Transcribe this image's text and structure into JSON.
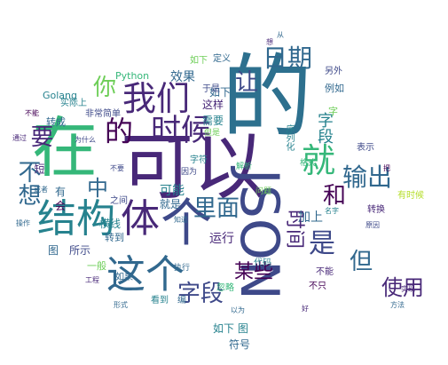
{
  "colors": {
    "c1": "#440154",
    "c2": "#482878",
    "c3": "#3e4989",
    "c4": "#31688e",
    "c5": "#26828e",
    "c6": "#1f9e89",
    "c7": "#35b779",
    "c8": "#6ece58",
    "c9": "#b5de2b",
    "c10": "#fde725"
  },
  "words": {
    "de": "的",
    "zai": "在",
    "keyi": "可以",
    "json": "JSON",
    "jiegou": "结构",
    "ti": "体",
    "zhege": "这个",
    "women": "我们",
    "shihou": "时候",
    "jiu": "就",
    "riqi": "日期",
    "rang": "让",
    "ni": "你",
    "buxiang": "不想",
    "yao": "要",
    "zhong": "中",
    "limian": "里面",
    "ziduan": "字段",
    "ziduan2": "字段",
    "shuchu": "输出",
    "he": "和",
    "shijian": "时间",
    "shi": "是",
    "dan": "但",
    "shiyong": "使用",
    "mouxie": "某些",
    "xiaoguo": "效果",
    "python": "Python",
    "golang": "Golang",
    "zhuancheng": "转成",
    "feichang": "非常简单",
    "zheyang": "这样",
    "xuyao": "需要",
    "yunxing": "运行",
    "keneng": "可能",
    "hengxian": "横线",
    "zhuandao": "转到",
    "rutu": "如下 图",
    "fuhao": "符号",
    "suoshi": "所示",
    "tu": "图",
    "jiashang": "加上",
    "biaoshi": "表示",
    "zhuanhuan": "转换",
    "youshihou": "有时候",
    "daima": "代码",
    "hulue": "忽略",
    "yiban": "一般",
    "lingwai": "另外",
    "liru": "例如",
    "dingyi": "定义",
    "yushi": "于是",
    "ruxia": "如下",
    "zifu": "字符",
    "yinwei": "因为",
    "jiushi": "就是",
    "zhijian": "之间",
    "ruguo": "如果",
    "zhixing": "执行",
    "kandao": "看到",
    "bian": "编",
    "danshi": "但是",
    "weishi": "为什么",
    "shijishang": "实际上",
    "buneng": "不能",
    "you": "有",
    "hui": "会",
    "xiezuo": "写作",
    "huozhe": "或者",
    "tongguo": "通过",
    "duan": "短",
    "caozuo": "操作",
    "gongcheng": "工程",
    "xingshi": "形式",
    "zhijie": "直接",
    "buyao": "不要",
    "geshi": "格式",
    "wenti": "问题",
    "yuanyin": "原因",
    "mingzi": "名字",
    "duiyu": "对于",
    "nandu": "难度",
    "xiangtong": "相同",
    "shixian": "实现",
    "fanfa": "方法",
    "shuju": "数据",
    "buzhi": "不只",
    "fanxing": "反射",
    "zhidao": "知道",
    "hao": "好",
    "ba": "把",
    "gen": "跟",
    "cong": "从",
    "xiang": "想",
    "zi": "字",
    "yiwei": "以为",
    "jiexi": "解析",
    "xuliehua": "序列化"
  }
}
